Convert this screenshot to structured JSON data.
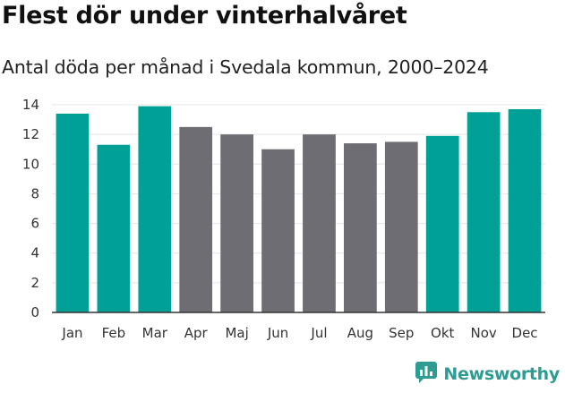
{
  "header": {
    "title": "Flest dör under vinterhalvåret",
    "subtitle": "Antal döda per månad i Svedala kommun, 2000–2024"
  },
  "chart_data": {
    "type": "bar",
    "title": "Flest dör under vinterhalvåret",
    "subtitle": "Antal döda per månad i Svedala kommun, 2000–2024",
    "xlabel": "",
    "ylabel": "",
    "ylim": [
      0,
      14
    ],
    "yticks": [
      0,
      2,
      4,
      6,
      8,
      10,
      12,
      14
    ],
    "grid": true,
    "categories": [
      "Jan",
      "Feb",
      "Mar",
      "Apr",
      "Maj",
      "Jun",
      "Jul",
      "Aug",
      "Sep",
      "Okt",
      "Nov",
      "Dec"
    ],
    "values": [
      13.4,
      11.3,
      13.9,
      12.5,
      12.0,
      11.0,
      12.0,
      11.4,
      11.5,
      11.9,
      13.5,
      13.7
    ],
    "highlight": [
      true,
      true,
      true,
      false,
      false,
      false,
      false,
      false,
      false,
      true,
      true,
      true
    ],
    "colors": {
      "highlight": "#00a096",
      "other": "#6e6d73",
      "grid": "#e4e4e4",
      "axis": "#333333"
    }
  },
  "branding": {
    "name": "Newsworthy",
    "logo_icon": "newsworthy-logo-icon",
    "color": "#2e9c93"
  }
}
